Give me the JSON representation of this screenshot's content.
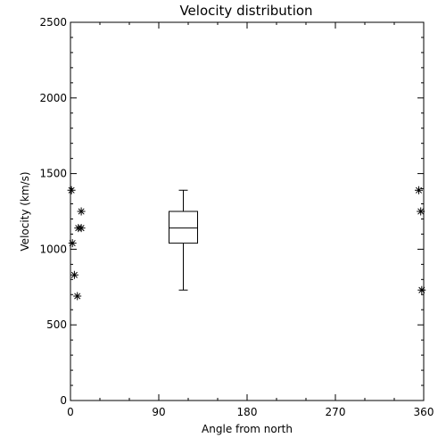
{
  "chart_data": {
    "type": "scatter",
    "title": "Velocity distribution",
    "xlabel": "Angle from north",
    "ylabel": "Velocity (km/s)",
    "xlim": [
      0,
      360
    ],
    "ylim": [
      0,
      2500
    ],
    "xticks": [
      0,
      90,
      180,
      270,
      360
    ],
    "yticks": [
      0,
      500,
      1000,
      1500,
      2000,
      2500
    ],
    "grid": false,
    "legend": "none",
    "points": [
      {
        "x": 1,
        "y": 1390
      },
      {
        "x": 2,
        "y": 1040
      },
      {
        "x": 4,
        "y": 830
      },
      {
        "x": 7,
        "y": 690
      },
      {
        "x": 8,
        "y": 1140
      },
      {
        "x": 11,
        "y": 1140
      },
      {
        "x": 11,
        "y": 1250
      },
      {
        "x": 355,
        "y": 1390
      },
      {
        "x": 357,
        "y": 1250
      },
      {
        "x": 358,
        "y": 730
      }
    ],
    "boxplot": {
      "x": 115,
      "min": 730,
      "q1": 1040,
      "median": 1140,
      "q3": 1250,
      "max": 1390
    },
    "colors": {
      "marks": "#000000",
      "background": "#ffffff"
    }
  }
}
